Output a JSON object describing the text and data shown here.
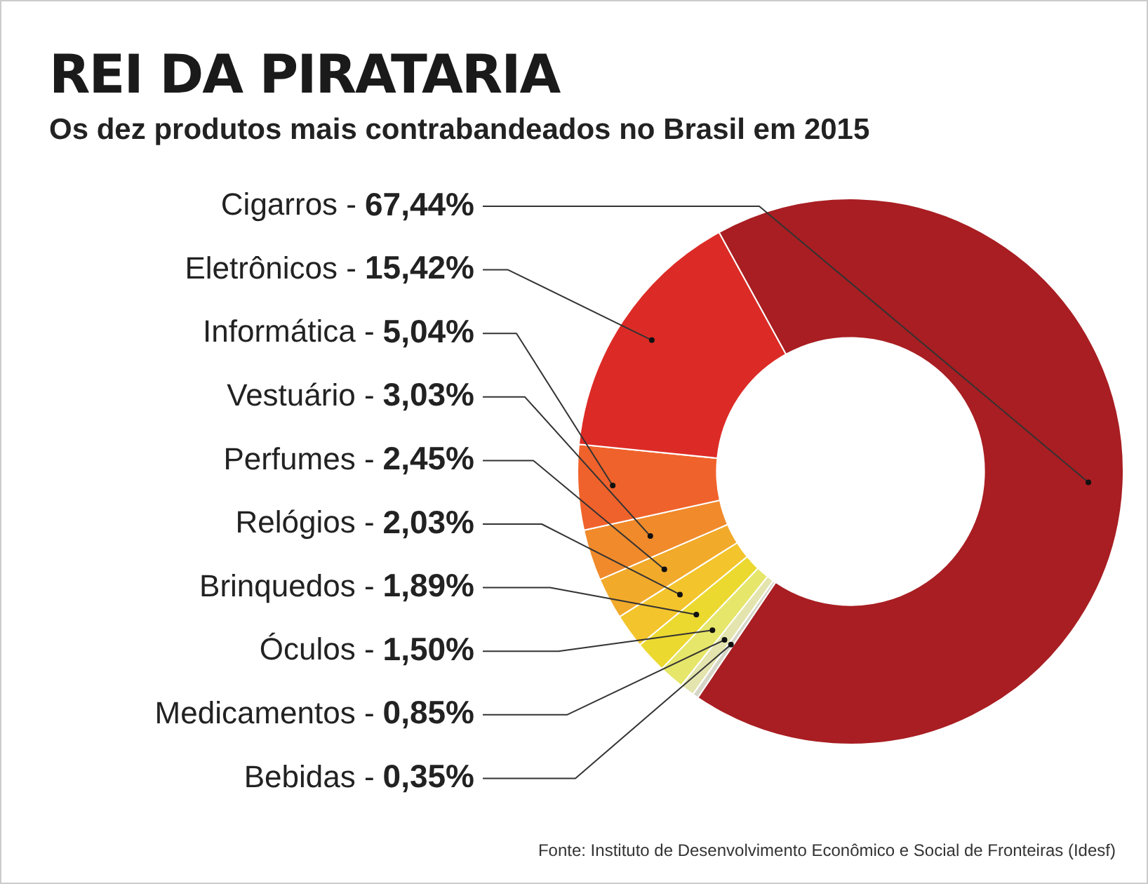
{
  "chart_data": {
    "type": "donut",
    "title": "REI DA PIRATARIA",
    "subtitle": "Os dez produtos mais contrabandeados no Brasil em 2015",
    "categories": [
      "Cigarros -",
      "Eletrônicos -",
      "Informática -",
      "Vestuário -",
      "Perfumes -",
      "Relógios -",
      "Brinquedos -",
      "Óculos -",
      "Medicamentos -",
      "Bebidas -"
    ],
    "values": [
      67.44,
      15.42,
      5.04,
      3.03,
      2.45,
      2.03,
      1.89,
      1.5,
      0.85,
      0.35
    ],
    "value_labels": [
      "67,44%",
      "15,42%",
      "5,04%",
      "3,03%",
      "2,45%",
      "2,03%",
      "1,89%",
      "1,50%",
      "0,85%",
      "0,35%"
    ],
    "colors": [
      "#a81e22",
      "#dc2b26",
      "#f0622b",
      "#f08a2b",
      "#f2aa2b",
      "#f3c42c",
      "#ecd930",
      "#e6e66a",
      "#e4e4ae",
      "#d6d6c8"
    ],
    "legend": false,
    "annotations": [
      "Fonte: Instituto de Desenvolvimento Econômico e Social de Fronteiras (Idesf)"
    ]
  }
}
